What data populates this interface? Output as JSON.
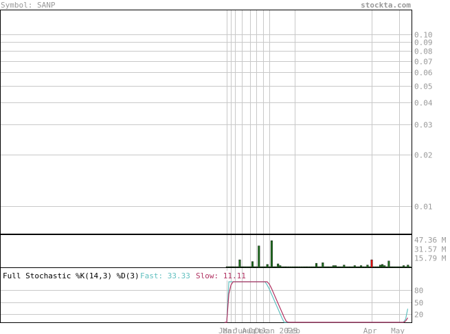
{
  "header": {
    "symbol_label": "Symbol: SANP",
    "site": "stockta.com"
  },
  "colors": {
    "grid": "#c8c8c8",
    "axis_text": "#999999",
    "up_bar": "#1e6e1e",
    "down_bar": "#e01010",
    "fast_line": "#5fbfbf",
    "slow_line": "#b03060",
    "frame": "#000000"
  },
  "chart_data": {
    "type": "financial",
    "price": {
      "scale": "log",
      "y_ticks": [
        {
          "value": 0.1,
          "label": "0.10"
        },
        {
          "value": 0.09,
          "label": "0.09"
        },
        {
          "value": 0.08,
          "label": "0.08"
        },
        {
          "value": 0.07,
          "label": "0.07"
        },
        {
          "value": 0.06,
          "label": "0.06"
        },
        {
          "value": 0.05,
          "label": "0.05"
        },
        {
          "value": 0.04,
          "label": "0.04"
        },
        {
          "value": 0.03,
          "label": "0.03"
        },
        {
          "value": 0.02,
          "label": "0.02"
        },
        {
          "value": 0.01,
          "label": "0.01"
        }
      ]
    },
    "volume": {
      "y_ticks": [
        {
          "value": 47.36,
          "label": "47.36 M"
        },
        {
          "value": 31.57,
          "label": "31.57 M"
        },
        {
          "value": 15.79,
          "label": "15.79 M"
        }
      ],
      "bars": [
        {
          "v": 0.5,
          "up": true
        },
        {
          "v": 0.5,
          "up": true
        },
        {
          "v": 0.5,
          "up": true
        },
        {
          "v": 0.5,
          "up": true
        },
        {
          "v": 0.5,
          "up": true
        },
        {
          "v": 0.5,
          "up": true
        },
        {
          "v": 13,
          "up": true
        },
        {
          "v": 0.5,
          "up": true
        },
        {
          "v": 0.5,
          "up": true
        },
        {
          "v": 0.5,
          "up": true
        },
        {
          "v": 0.5,
          "up": true
        },
        {
          "v": 0.5,
          "up": true
        },
        {
          "v": 10,
          "up": true
        },
        {
          "v": 0.5,
          "up": true
        },
        {
          "v": 0.5,
          "up": true
        },
        {
          "v": 37,
          "up": true
        },
        {
          "v": 0.5,
          "up": true
        },
        {
          "v": 0.5,
          "up": true
        },
        {
          "v": 0.5,
          "up": true
        },
        {
          "v": 5,
          "up": true
        },
        {
          "v": 0.5,
          "up": true
        },
        {
          "v": 46,
          "up": true
        },
        {
          "v": 0.5,
          "up": true
        },
        {
          "v": 0.5,
          "up": true
        },
        {
          "v": 6,
          "up": true
        },
        {
          "v": 3,
          "up": true
        },
        {
          "v": 0.5,
          "up": true
        },
        {
          "v": 0.5,
          "up": true
        },
        {
          "v": 0.5,
          "up": true
        },
        {
          "v": 0.5,
          "up": true
        },
        {
          "v": 0.5,
          "up": true
        },
        {
          "v": 0.5,
          "up": true
        },
        {
          "v": 0.5,
          "up": true
        },
        {
          "v": 0.5,
          "up": true
        },
        {
          "v": 0.5,
          "up": true
        },
        {
          "v": 0.5,
          "up": true
        },
        {
          "v": 0.5,
          "up": true
        },
        {
          "v": 0.5,
          "up": true
        },
        {
          "v": 0.5,
          "up": true
        },
        {
          "v": 0.5,
          "up": true
        },
        {
          "v": 0.5,
          "up": true
        },
        {
          "v": 0.5,
          "up": true
        },
        {
          "v": 7,
          "up": true
        },
        {
          "v": 0.5,
          "up": true
        },
        {
          "v": 0.5,
          "up": true
        },
        {
          "v": 8,
          "up": true
        },
        {
          "v": 0.5,
          "up": true
        },
        {
          "v": 0.5,
          "up": true
        },
        {
          "v": 0.5,
          "up": true
        },
        {
          "v": 0.5,
          "up": true
        },
        {
          "v": 3,
          "up": true
        },
        {
          "v": 3,
          "up": true
        },
        {
          "v": 0.5,
          "up": true
        },
        {
          "v": 0.5,
          "up": true
        },
        {
          "v": 0.5,
          "up": true
        },
        {
          "v": 4,
          "up": true
        },
        {
          "v": 0.5,
          "up": true
        },
        {
          "v": 0.5,
          "up": true
        },
        {
          "v": 0.5,
          "up": true
        },
        {
          "v": 0.5,
          "up": true
        },
        {
          "v": 3,
          "up": true
        },
        {
          "v": 0.5,
          "up": true
        },
        {
          "v": 0.5,
          "up": true
        },
        {
          "v": 3,
          "up": true
        },
        {
          "v": 0.5,
          "up": true
        },
        {
          "v": 0.5,
          "up": true
        },
        {
          "v": 4,
          "up": true
        },
        {
          "v": 0.5,
          "up": true
        },
        {
          "v": 13,
          "up": false
        },
        {
          "v": 0.5,
          "up": true
        },
        {
          "v": 0.5,
          "up": true
        },
        {
          "v": 0.5,
          "up": true
        },
        {
          "v": 4,
          "up": true
        },
        {
          "v": 5,
          "up": true
        },
        {
          "v": 3,
          "up": true
        },
        {
          "v": 0.5,
          "up": true
        },
        {
          "v": 11,
          "up": true
        },
        {
          "v": 0.5,
          "up": true
        },
        {
          "v": 0.5,
          "up": true
        },
        {
          "v": 0.5,
          "up": true
        },
        {
          "v": 0.5,
          "up": true
        },
        {
          "v": 0.5,
          "up": true
        },
        {
          "v": 0.5,
          "up": true
        },
        {
          "v": 3,
          "up": true
        },
        {
          "v": 0.5,
          "up": true
        },
        {
          "v": 4,
          "up": true
        },
        {
          "v": 0.5,
          "up": true
        }
      ]
    },
    "stochastic": {
      "title": "Full Stochastic %K(14,3) %D(3)",
      "fast_label": "Fast: 33.33",
      "slow_label": "Slow: 11.11",
      "y_ticks": [
        {
          "value": 80,
          "label": "80"
        },
        {
          "value": 50,
          "label": "50"
        },
        {
          "value": 20,
          "label": "20"
        }
      ],
      "fast": [
        0,
        0,
        100,
        100,
        100,
        100,
        100,
        100,
        100,
        100,
        100,
        100,
        100,
        100,
        100,
        100,
        100,
        100,
        100,
        100,
        92,
        82,
        70,
        58,
        46,
        34,
        22,
        10,
        0,
        0,
        0,
        0,
        0,
        0,
        0,
        0,
        0,
        0,
        0,
        0,
        0,
        0,
        0,
        0,
        0,
        0,
        0,
        0,
        0,
        0,
        0,
        0,
        0,
        0,
        0,
        0,
        0,
        0,
        0,
        0,
        0,
        0,
        0,
        0,
        0,
        0,
        0,
        0,
        0,
        0,
        0,
        0,
        0,
        0,
        0,
        0,
        0,
        0,
        0,
        0,
        0,
        0,
        0,
        0,
        0,
        8,
        33.33
      ],
      "slow": [
        0,
        0,
        70,
        92,
        100,
        100,
        100,
        100,
        100,
        100,
        100,
        100,
        100,
        100,
        100,
        100,
        100,
        100,
        100,
        100,
        100,
        94,
        84,
        72,
        60,
        48,
        36,
        24,
        12,
        2,
        0,
        0,
        0,
        0,
        0,
        0,
        0,
        0,
        0,
        0,
        0,
        0,
        0,
        0,
        0,
        0,
        0,
        0,
        0,
        0,
        0,
        0,
        0,
        0,
        0,
        0,
        0,
        0,
        0,
        0,
        0,
        0,
        0,
        0,
        0,
        0,
        0,
        0,
        0,
        0,
        0,
        0,
        0,
        0,
        0,
        0,
        0,
        0,
        0,
        0,
        0,
        0,
        0,
        0,
        0,
        3,
        11.11
      ]
    },
    "x_labels": [
      {
        "label": "Jan",
        "idx": 0
      },
      {
        "label": "Mar",
        "idx": 2
      },
      {
        "label": "Jun",
        "idx": 7
      },
      {
        "label": "Aug",
        "idx": 11
      },
      {
        "label": "Oct",
        "idx": 14
      },
      {
        "label": "Dec",
        "idx": 17
      },
      {
        "label": "Jan 2025",
        "idx": 20
      },
      {
        "label": "Feb",
        "idx": 32
      },
      {
        "label": "Apr",
        "idx": 68
      },
      {
        "label": "May",
        "idx": 81
      }
    ],
    "v_grid_idx": [
      0,
      2,
      4,
      7,
      11,
      14,
      17,
      20,
      32,
      68,
      81
    ]
  }
}
